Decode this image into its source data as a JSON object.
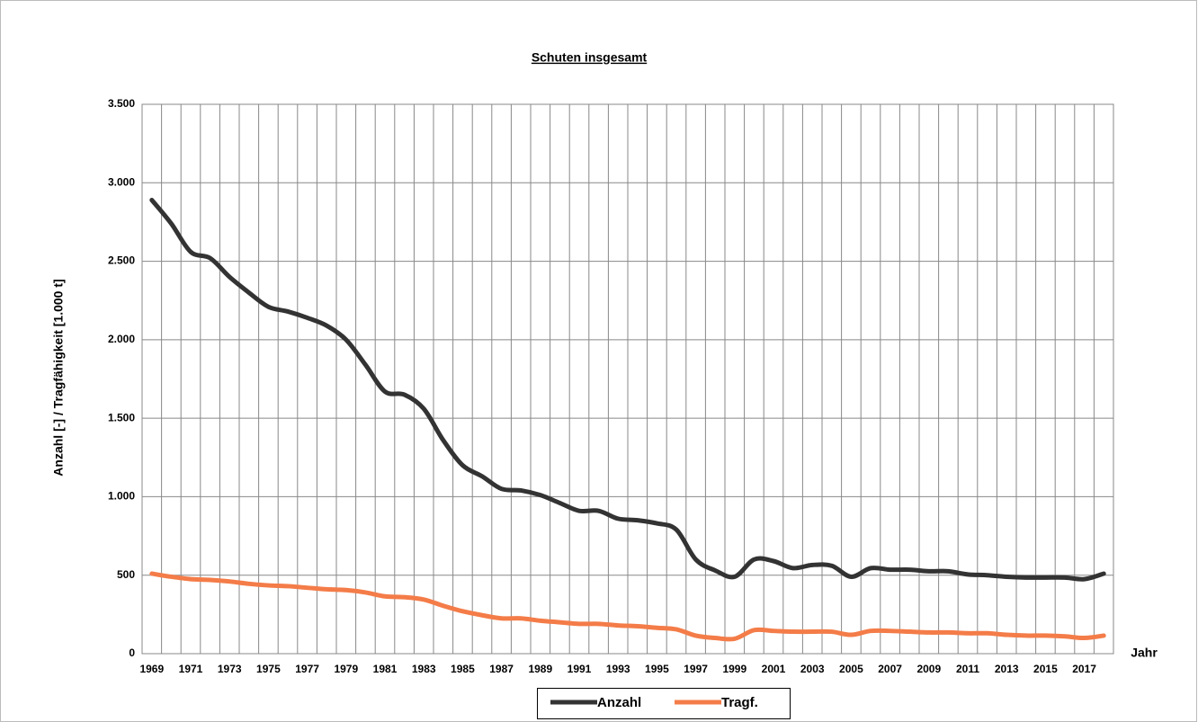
{
  "chart_data": {
    "type": "line",
    "title": "Schuten insgesamt",
    "y_label": "Anzahl [-] / Tragfähigkeit [1.000 t]",
    "x_label": "Jahr",
    "categories": [
      "1969",
      null,
      "1971",
      null,
      "1973",
      null,
      "1975",
      null,
      "1977",
      null,
      "1979",
      null,
      "1981",
      null,
      "1983",
      null,
      "1985",
      null,
      "1987",
      null,
      "1989",
      null,
      "1991",
      null,
      "1993",
      null,
      "1995",
      null,
      "1997",
      null,
      "1999",
      null,
      "2001",
      null,
      "2003",
      null,
      "2005",
      null,
      "2007",
      null,
      "2009",
      null,
      "2011",
      null,
      "2013",
      null,
      "2015",
      null,
      "2017",
      null
    ],
    "series": [
      {
        "name": "Anzahl",
        "color": "#333333",
        "values": [
          2890,
          2740,
          2560,
          2520,
          2400,
          2300,
          2210,
          2180,
          2140,
          2090,
          2000,
          1840,
          1670,
          1650,
          1560,
          1360,
          1200,
          1130,
          1050,
          1040,
          1010,
          960,
          910,
          910,
          860,
          850,
          830,
          790,
          600,
          530,
          490,
          600,
          590,
          545,
          565,
          560,
          490,
          545,
          535,
          535,
          525,
          525,
          505,
          500,
          490,
          485,
          485,
          485,
          475,
          510
        ]
      },
      {
        "name": "Tragf.",
        "color": "#f47c48",
        "values": [
          510,
          490,
          475,
          470,
          460,
          445,
          435,
          430,
          420,
          410,
          405,
          390,
          365,
          360,
          345,
          305,
          270,
          245,
          225,
          225,
          210,
          200,
          190,
          190,
          180,
          175,
          165,
          155,
          115,
          100,
          95,
          150,
          145,
          140,
          140,
          140,
          120,
          145,
          145,
          140,
          135,
          135,
          130,
          130,
          120,
          115,
          115,
          110,
          100,
          115
        ]
      }
    ],
    "ylim": [
      0,
      3500
    ],
    "yticks": [
      0,
      500,
      {
        "value": 1000,
        "label": "1.000"
      },
      {
        "value": 1500,
        "label": "1.500"
      },
      {
        "value": 2000,
        "label": "2.000"
      },
      {
        "value": 2500,
        "label": "2.500"
      },
      {
        "value": 3000,
        "label": "3.000"
      },
      {
        "value": 3500,
        "label": "3.500"
      }
    ],
    "grid": true,
    "legend": "bottom"
  }
}
